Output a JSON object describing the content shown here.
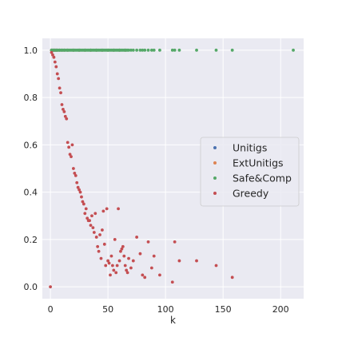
{
  "chart_data": {
    "type": "scatter",
    "title": "",
    "xlabel": "k",
    "ylabel": "",
    "xlim": [
      -7,
      220
    ],
    "ylim": [
      -0.05,
      1.05
    ],
    "xticks": [
      0,
      50,
      100,
      150,
      200
    ],
    "yticks": [
      0.0,
      0.2,
      0.4,
      0.6,
      0.8,
      1.0
    ],
    "xtick_labels": [
      "0",
      "50",
      "100",
      "150",
      "200"
    ],
    "ytick_labels": [
      "0.0",
      "0.2",
      "0.4",
      "0.6",
      "0.8",
      "1.0"
    ],
    "grid": true,
    "legend_position": "center-right",
    "series": [
      {
        "name": "Unitigs",
        "color": "#4c72b0",
        "x": [
          1,
          2,
          3,
          4,
          5,
          6,
          8,
          10,
          12,
          15,
          20,
          25,
          30,
          35,
          40,
          45,
          50,
          55,
          60,
          65
        ],
        "y": [
          1,
          1,
          1,
          1,
          1,
          1,
          1,
          1,
          1,
          1,
          1,
          1,
          1,
          1,
          1,
          1,
          1,
          1,
          1,
          1
        ]
      },
      {
        "name": "ExtUnitigs",
        "color": "#dd8452",
        "x": [
          1,
          2,
          3,
          4,
          5,
          6,
          8,
          10,
          12,
          15,
          20,
          25,
          30,
          35,
          40,
          45,
          50,
          55,
          60,
          65
        ],
        "y": [
          1,
          1,
          1,
          1,
          1,
          1,
          1,
          1,
          1,
          1,
          1,
          1,
          1,
          1,
          1,
          1,
          1,
          1,
          1,
          1
        ]
      },
      {
        "name": "Safe&Comp",
        "color": "#55a868",
        "x": [
          1,
          2,
          3,
          4,
          5,
          6,
          7,
          8,
          9,
          10,
          11,
          12,
          13,
          14,
          15,
          16,
          17,
          18,
          19,
          20,
          21,
          22,
          23,
          24,
          25,
          26,
          27,
          28,
          29,
          30,
          31,
          32,
          33,
          34,
          35,
          36,
          37,
          38,
          39,
          40,
          41,
          42,
          43,
          44,
          45,
          46,
          47,
          48,
          49,
          50,
          51,
          52,
          53,
          54,
          55,
          56,
          57,
          58,
          59,
          60,
          61,
          62,
          63,
          64,
          65,
          66,
          67,
          68,
          70,
          72,
          75,
          78,
          80,
          82,
          85,
          88,
          90,
          95,
          106,
          108,
          112,
          127,
          144,
          158,
          211
        ],
        "y": [
          1,
          1,
          1,
          1,
          1,
          1,
          1,
          1,
          1,
          1,
          1,
          1,
          1,
          1,
          1,
          1,
          1,
          1,
          1,
          1,
          1,
          1,
          1,
          1,
          1,
          1,
          1,
          1,
          1,
          1,
          1,
          1,
          1,
          1,
          1,
          1,
          1,
          1,
          1,
          1,
          1,
          1,
          1,
          1,
          1,
          1,
          1,
          1,
          1,
          1,
          1,
          1,
          1,
          1,
          1,
          1,
          1,
          1,
          1,
          1,
          1,
          1,
          1,
          1,
          1,
          1,
          1,
          1,
          1,
          1,
          1,
          1,
          1,
          1,
          1,
          1,
          1,
          1,
          1,
          1,
          1,
          1,
          1,
          1,
          1
        ]
      },
      {
        "name": "Greedy",
        "color": "#c44e52",
        "x": [
          0,
          1,
          2,
          3,
          4,
          5,
          6,
          7,
          8,
          9,
          10,
          11,
          12,
          13,
          14,
          15,
          16,
          17,
          18,
          19,
          20,
          21,
          22,
          23,
          24,
          25,
          26,
          27,
          28,
          29,
          30,
          31,
          32,
          33,
          34,
          35,
          36,
          37,
          38,
          39,
          40,
          41,
          42,
          43,
          44,
          45,
          46,
          47,
          48,
          49,
          50,
          51,
          52,
          53,
          54,
          55,
          56,
          57,
          58,
          59,
          60,
          61,
          62,
          63,
          64,
          65,
          66,
          67,
          68,
          70,
          72,
          75,
          78,
          80,
          82,
          85,
          88,
          90,
          95,
          106,
          108,
          112,
          127,
          144,
          158
        ],
        "y": [
          0.0,
          0.99,
          0.98,
          0.97,
          0.95,
          0.93,
          0.9,
          0.88,
          0.84,
          0.82,
          0.77,
          0.75,
          0.74,
          0.72,
          0.71,
          0.61,
          0.59,
          0.56,
          0.55,
          0.6,
          0.5,
          0.48,
          0.47,
          0.44,
          0.42,
          0.41,
          0.4,
          0.38,
          0.36,
          0.35,
          0.31,
          0.33,
          0.29,
          0.28,
          0.28,
          0.26,
          0.3,
          0.25,
          0.23,
          0.31,
          0.21,
          0.17,
          0.15,
          0.22,
          0.12,
          0.24,
          0.32,
          0.18,
          0.09,
          0.33,
          0.11,
          0.1,
          0.05,
          0.13,
          0.09,
          0.07,
          0.2,
          0.06,
          0.09,
          0.33,
          0.11,
          0.15,
          0.16,
          0.17,
          0.13,
          0.09,
          0.07,
          0.06,
          0.12,
          0.08,
          0.11,
          0.21,
          0.14,
          0.05,
          0.04,
          0.19,
          0.08,
          0.13,
          0.05,
          0.02,
          0.19,
          0.11,
          0.11,
          0.09,
          0.04
        ]
      }
    ]
  }
}
